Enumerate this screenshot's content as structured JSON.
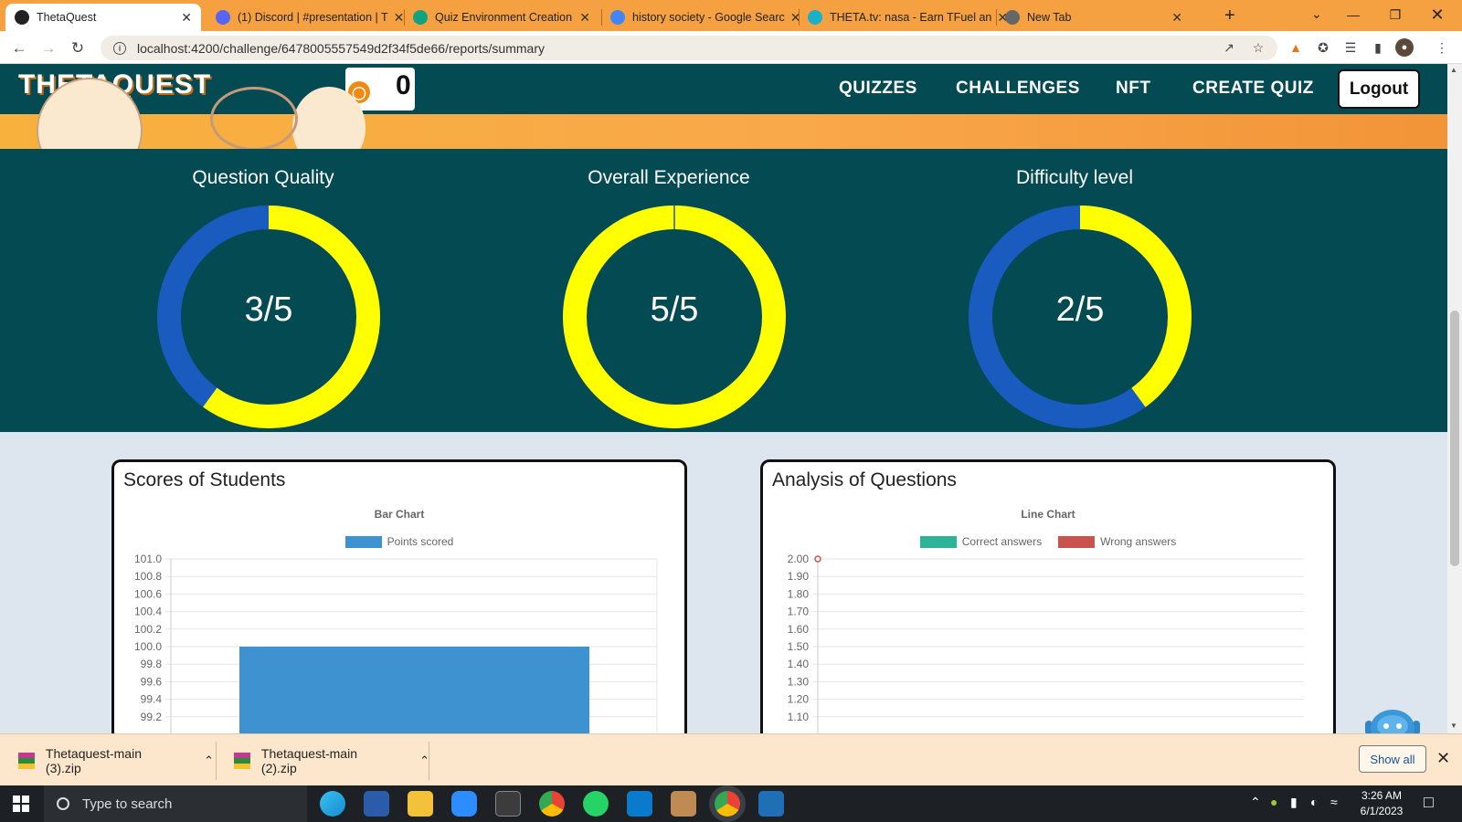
{
  "browser": {
    "tabs": [
      {
        "title": "ThetaQuest",
        "icon": "angular-icon",
        "color": "#222222",
        "active": true
      },
      {
        "title": "(1) Discord | #presentation | T",
        "icon": "discord-icon",
        "color": "#5865f2",
        "active": false
      },
      {
        "title": "Quiz Environment Creation",
        "icon": "openai-icon",
        "color": "#10a37f",
        "active": false
      },
      {
        "title": "history society - Google Searc",
        "icon": "google-icon",
        "color": "#4285f4",
        "active": false
      },
      {
        "title": "THETA.tv: nasa - Earn TFuel an",
        "icon": "theta-icon",
        "color": "#1bb0c8",
        "active": false
      },
      {
        "title": "New Tab",
        "icon": "chrome-icon",
        "color": "#666666",
        "active": false
      }
    ],
    "new_tab_label": "+",
    "address": "localhost:4200/challenge/6478005557549d2f34f5de66/reports/summary"
  },
  "site": {
    "logo": "THETAQUEST",
    "coin_count": "0",
    "nav": [
      "QUIZZES",
      "CHALLENGES",
      "NFT",
      "CREATE QUIZ"
    ],
    "logout_label": "Logout",
    "accent": "#f7a23c",
    "header_bg": "#034a52"
  },
  "ratings": [
    {
      "title": "Question Quality",
      "score": "3/5",
      "value": 3,
      "max": 5
    },
    {
      "title": "Overall Experience",
      "score": "5/5",
      "value": 5,
      "max": 5
    },
    {
      "title": "Difficulty level",
      "score": "2/5",
      "value": 2,
      "max": 5
    }
  ],
  "rating_colors": {
    "filled": "#ffff00",
    "empty": "#1a5bbf"
  },
  "cards": {
    "scores_title": "Scores of Students",
    "analysis_title": "Analysis of Questions"
  },
  "chart_data": [
    {
      "type": "bar",
      "title": "Bar Chart",
      "series": [
        {
          "name": "Points scored",
          "color": "#3d92cf",
          "values": [
            100
          ]
        }
      ],
      "categories": [
        ""
      ],
      "ylim": [
        99.2,
        101.0
      ],
      "yticks": [
        "101.0",
        "100.8",
        "100.6",
        "100.4",
        "100.2",
        "100.0",
        "99.8",
        "99.6",
        "99.4",
        "99.2"
      ],
      "grid": true,
      "legend": "top"
    },
    {
      "type": "line",
      "title": "Line Chart",
      "series": [
        {
          "name": "Correct answers",
          "color": "#2eb396",
          "values": []
        },
        {
          "name": "Wrong answers",
          "color": "#c9544f",
          "values": [
            2.0
          ]
        }
      ],
      "ylim": [
        1.1,
        2.0
      ],
      "yticks": [
        "2.00",
        "1.90",
        "1.80",
        "1.70",
        "1.60",
        "1.50",
        "1.40",
        "1.30",
        "1.20",
        "1.10"
      ],
      "grid": true,
      "legend": "top"
    }
  ],
  "downloads": {
    "items": [
      "Thetaquest-main (3).zip",
      "Thetaquest-main (2).zip"
    ],
    "show_all_label": "Show all"
  },
  "taskbar": {
    "search_placeholder": "Type to search",
    "time": "3:26 AM",
    "date": "6/1/2023"
  }
}
